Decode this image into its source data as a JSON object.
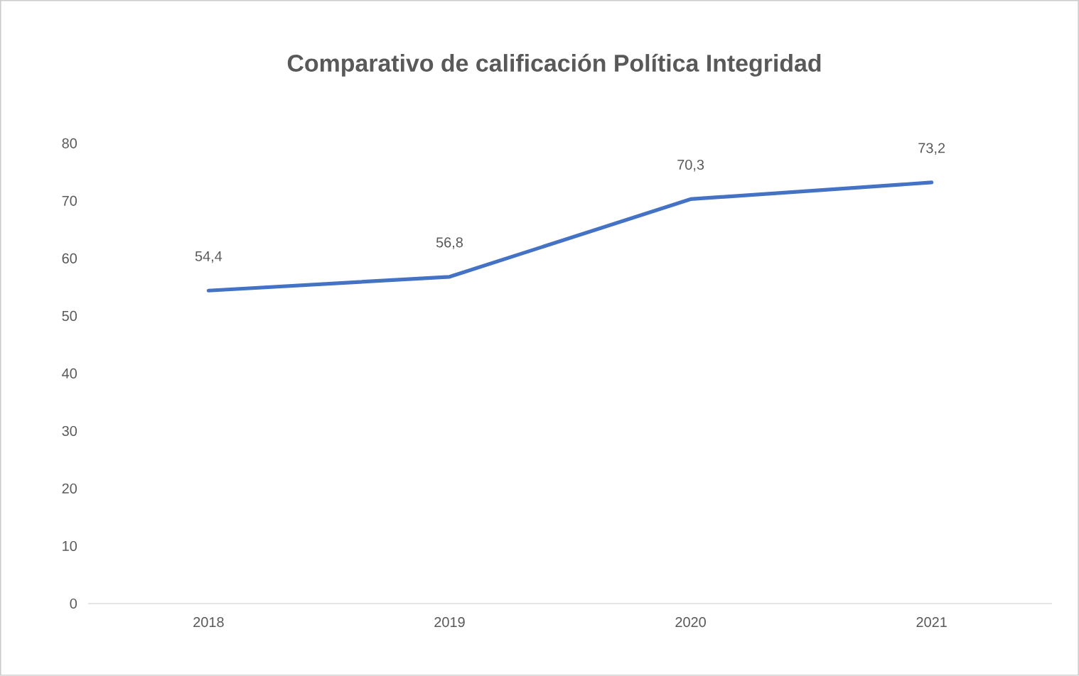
{
  "chart_data": {
    "type": "line",
    "title": "Comparativo de calificación Política Integridad",
    "categories": [
      "2018",
      "2019",
      "2020",
      "2021"
    ],
    "values": [
      54.4,
      56.8,
      70.3,
      73.2
    ],
    "value_labels": [
      "54,4",
      "56,8",
      "70,3",
      "73,2"
    ],
    "color": "#4472c4",
    "ylim": [
      0,
      80
    ],
    "yticks": [
      0,
      10,
      20,
      30,
      40,
      50,
      60,
      70,
      80
    ],
    "marker": "none",
    "line_style": "solid"
  }
}
